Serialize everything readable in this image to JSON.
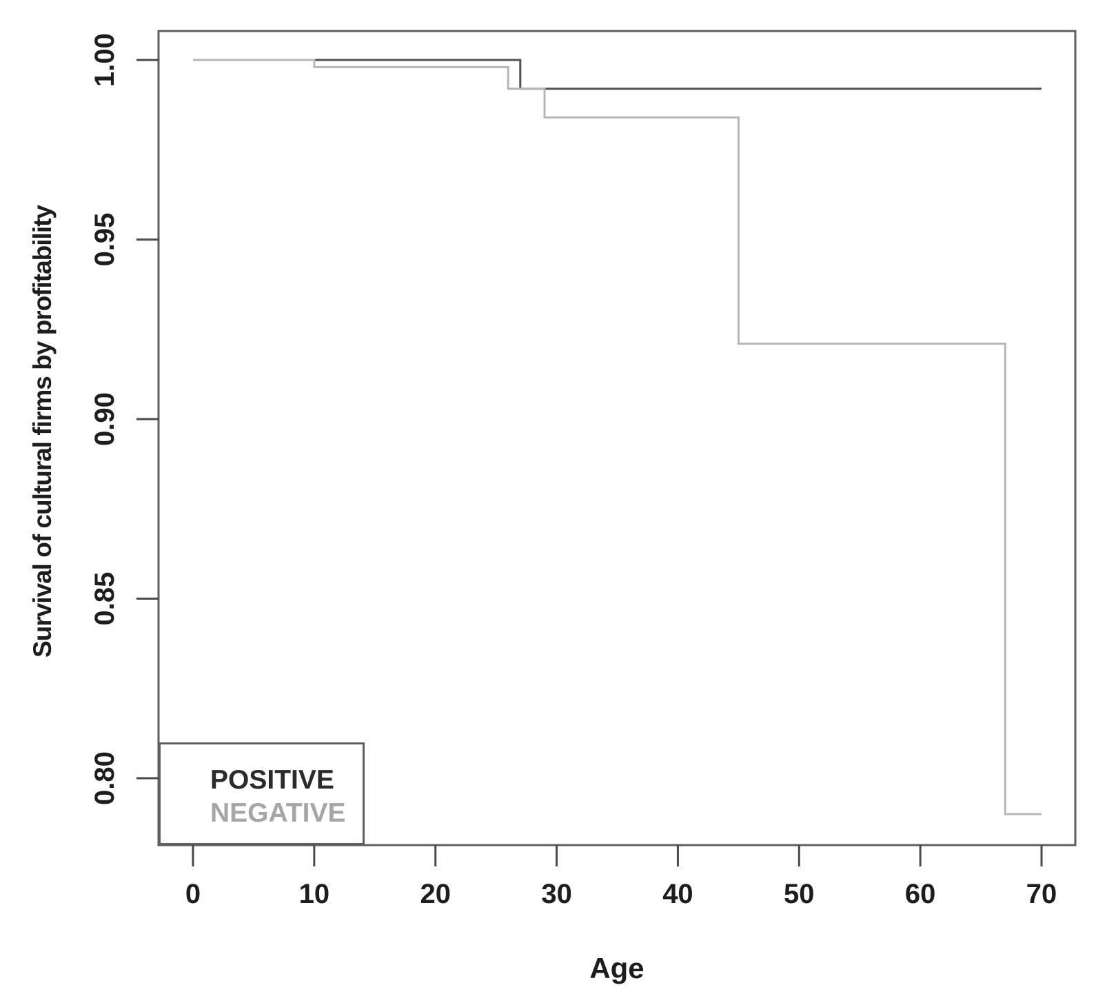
{
  "chart_data": {
    "type": "line",
    "subtype": "kaplan-meier-step-survival",
    "title": "",
    "xlabel": "Age",
    "ylabel": "Survival of cultural firms by profitability",
    "xlim": [
      0,
      70
    ],
    "ylim": [
      0.78,
      1.01
    ],
    "x_ticks": [
      0,
      10,
      20,
      30,
      40,
      50,
      60,
      70
    ],
    "y_ticks": [
      1.0,
      0.95,
      0.9,
      0.85,
      0.8
    ],
    "y_tick_decimals": 2,
    "grid": false,
    "legend_position": "bottom-left",
    "series": [
      {
        "name": "POSITIVE",
        "line_color": "#515151",
        "label_color": "#2b2b2b",
        "points": [
          [
            0,
            1.0
          ],
          [
            27,
            1.0
          ],
          [
            27,
            0.992
          ],
          [
            70,
            0.992
          ]
        ]
      },
      {
        "name": "NEGATIVE",
        "line_color": "#b7b7b7",
        "label_color": "#a6a6a6",
        "points": [
          [
            0,
            1.0
          ],
          [
            10,
            1.0
          ],
          [
            10,
            0.998
          ],
          [
            26,
            0.998
          ],
          [
            26,
            0.992
          ],
          [
            29,
            0.992
          ],
          [
            29,
            0.984
          ],
          [
            45,
            0.984
          ],
          [
            45,
            0.921
          ],
          [
            67,
            0.921
          ],
          [
            67,
            0.79
          ],
          [
            70,
            0.79
          ]
        ]
      }
    ]
  },
  "colors": {
    "axis": "#5f5f5f",
    "tick": "#4a4a4a",
    "label": "#1d1d1d",
    "background": "#ffffff"
  }
}
